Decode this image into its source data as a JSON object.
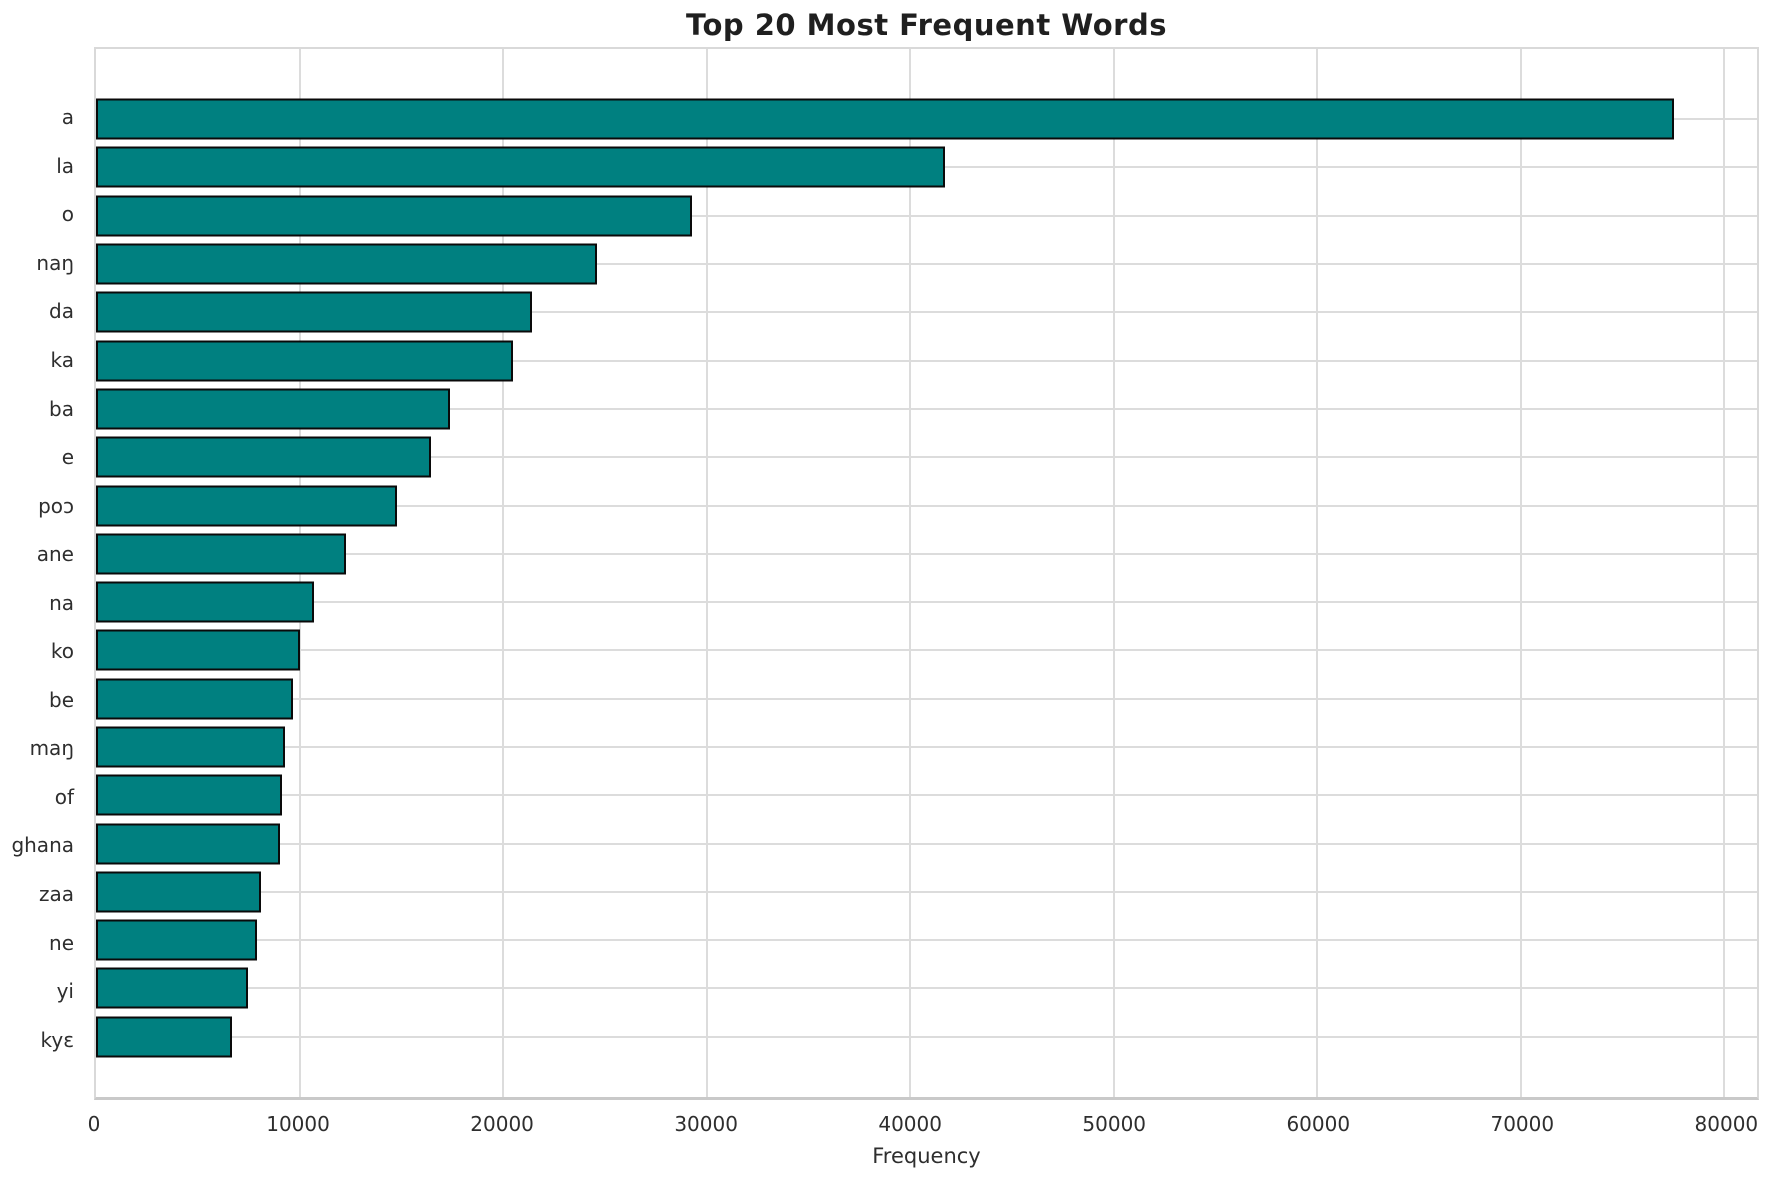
{
  "chart_data": {
    "type": "bar",
    "orientation": "horizontal",
    "title": "Top 20 Most Frequent Words",
    "xlabel": "Frequency",
    "ylabel": "",
    "categories": [
      "a",
      "la",
      "o",
      "naŋ",
      "da",
      "ka",
      "ba",
      "e",
      "poɔ",
      "ane",
      "na",
      "ko",
      "be",
      "maŋ",
      "of",
      "ghana",
      "zaa",
      "ne",
      "yi",
      "kyɛ"
    ],
    "values": [
      77500,
      41700,
      29300,
      24600,
      21400,
      20500,
      17400,
      16450,
      14800,
      12300,
      10700,
      10000,
      9700,
      9300,
      9150,
      9050,
      8100,
      7900,
      7450,
      6700
    ],
    "xticks": [
      0,
      10000,
      20000,
      30000,
      40000,
      50000,
      60000,
      70000,
      80000
    ],
    "xlim": [
      0,
      81600
    ],
    "grid": true,
    "legend": "none",
    "bar_color": "#008080",
    "bar_edge_color": "#0a0a0a",
    "grid_color": "#dcdcdc",
    "background_color": "#ffffff"
  }
}
